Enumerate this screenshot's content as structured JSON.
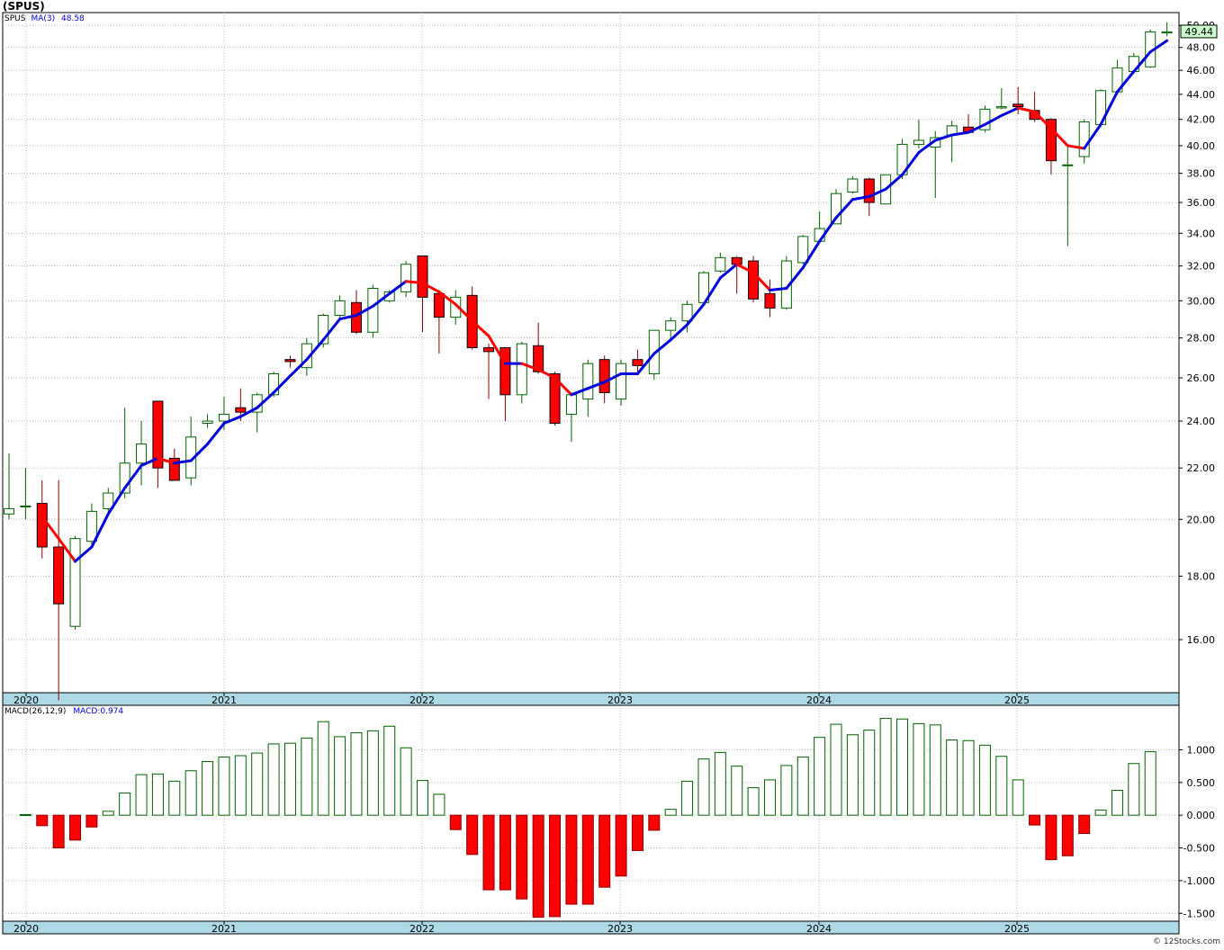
{
  "header": {
    "symbol": "(SPUS)"
  },
  "price_legend": {
    "symbol": "SPUS",
    "ma_label": "MA(3)",
    "ma_value": "48.58"
  },
  "macd_legend": {
    "label": "MACD(26,12,9)",
    "value_label": "MACD:0.974"
  },
  "last_price_tag": "49.44",
  "credit": "© 12Stocks.com",
  "colors": {
    "up": "#006400",
    "down": "#ff0000",
    "ma_up": "#0000dd",
    "ma_down": "#ff0000",
    "axis_band": "#add8e6",
    "grid": "#bbbbbb",
    "tag_bg": "#ccffcc"
  },
  "chart_data": [
    {
      "type": "candlestick",
      "title": "(SPUS)",
      "scale": "log",
      "ylim": [
        14.5,
        51.2
      ],
      "yticks": [
        "16.00",
        "18.00",
        "20.00",
        "22.00",
        "24.00",
        "26.00",
        "28.00",
        "30.00",
        "32.00",
        "34.00",
        "36.00",
        "38.00",
        "40.00",
        "42.00",
        "44.00",
        "46.00",
        "48.00",
        "50.00"
      ],
      "x_labels": [
        "2020",
        "2021",
        "2022",
        "2023",
        "2024",
        "2025"
      ],
      "ma_name": "MA(3)",
      "ohlc": [
        [
          20.2,
          22.6,
          20.0,
          20.4
        ],
        [
          20.5,
          22.0,
          20.0,
          20.5
        ],
        [
          20.6,
          21.5,
          18.6,
          19.0
        ],
        [
          19.0,
          21.5,
          14.3,
          17.1
        ],
        [
          16.4,
          19.4,
          16.3,
          19.3
        ],
        [
          19.2,
          20.6,
          19.1,
          20.3
        ],
        [
          20.4,
          21.2,
          20.2,
          21.0
        ],
        [
          21.0,
          24.6,
          20.8,
          22.2
        ],
        [
          22.2,
          24.0,
          21.3,
          23.0
        ],
        [
          24.9,
          24.9,
          21.2,
          22.0
        ],
        [
          22.4,
          22.8,
          21.6,
          21.5
        ],
        [
          21.6,
          24.2,
          21.3,
          23.3
        ],
        [
          23.9,
          24.3,
          23.7,
          24.0
        ],
        [
          24.0,
          25.1,
          23.6,
          24.3
        ],
        [
          24.6,
          25.5,
          24.0,
          24.4
        ],
        [
          24.4,
          25.3,
          23.5,
          25.2
        ],
        [
          25.2,
          26.3,
          25.1,
          26.2
        ],
        [
          26.9,
          27.1,
          26.5,
          26.8
        ],
        [
          26.5,
          28.0,
          26.1,
          27.7
        ],
        [
          27.7,
          29.3,
          27.5,
          29.2
        ],
        [
          29.2,
          30.3,
          29.0,
          30.0
        ],
        [
          29.9,
          30.6,
          28.2,
          28.3
        ],
        [
          28.3,
          30.9,
          28.0,
          30.7
        ],
        [
          30.0,
          30.6,
          29.9,
          30.5
        ],
        [
          30.5,
          32.3,
          30.2,
          32.1
        ],
        [
          32.6,
          32.6,
          28.3,
          30.2
        ],
        [
          30.4,
          30.6,
          27.2,
          29.1
        ],
        [
          29.1,
          30.6,
          28.7,
          30.2
        ],
        [
          30.3,
          30.8,
          27.4,
          27.5
        ],
        [
          27.5,
          27.7,
          25.0,
          27.3
        ],
        [
          27.5,
          27.5,
          24.0,
          25.2
        ],
        [
          25.2,
          27.8,
          24.8,
          27.7
        ],
        [
          27.6,
          28.8,
          26.2,
          26.3
        ],
        [
          26.2,
          26.3,
          23.8,
          23.9
        ],
        [
          24.3,
          25.3,
          23.1,
          25.2
        ],
        [
          25.0,
          26.9,
          24.2,
          26.7
        ],
        [
          26.9,
          27.1,
          24.8,
          25.3
        ],
        [
          25.0,
          26.9,
          24.7,
          26.7
        ],
        [
          26.9,
          27.4,
          26.3,
          26.6
        ],
        [
          26.2,
          28.3,
          25.9,
          28.4
        ],
        [
          28.4,
          29.1,
          28.0,
          28.9
        ],
        [
          28.9,
          30.0,
          28.3,
          29.8
        ],
        [
          29.9,
          31.7,
          29.8,
          31.6
        ],
        [
          31.7,
          32.8,
          31.6,
          32.5
        ],
        [
          32.5,
          32.6,
          30.4,
          32.1
        ],
        [
          32.3,
          32.6,
          29.9,
          30.1
        ],
        [
          30.4,
          31.2,
          29.1,
          29.6
        ],
        [
          29.6,
          32.6,
          29.5,
          32.3
        ],
        [
          32.2,
          33.9,
          32.1,
          33.8
        ],
        [
          33.5,
          35.4,
          33.4,
          34.3
        ],
        [
          34.6,
          36.9,
          34.6,
          36.6
        ],
        [
          36.7,
          37.8,
          36.6,
          37.6
        ],
        [
          37.6,
          37.7,
          35.1,
          36.0
        ],
        [
          35.9,
          37.9,
          35.9,
          37.9
        ],
        [
          37.9,
          40.5,
          37.6,
          40.1
        ],
        [
          40.1,
          42.0,
          39.8,
          40.4
        ],
        [
          39.9,
          41.1,
          36.3,
          40.6
        ],
        [
          40.8,
          41.9,
          38.8,
          41.5
        ],
        [
          41.4,
          42.4,
          41.0,
          41.0
        ],
        [
          41.2,
          43.1,
          41.0,
          42.8
        ],
        [
          42.9,
          44.5,
          42.8,
          43.0
        ],
        [
          43.2,
          44.6,
          42.4,
          43.0
        ],
        [
          42.7,
          44.2,
          41.8,
          42.0
        ],
        [
          42.0,
          42.1,
          37.9,
          38.9
        ],
        [
          38.6,
          40.0,
          33.2,
          38.6
        ],
        [
          39.2,
          42.0,
          38.7,
          41.8
        ],
        [
          41.6,
          44.4,
          41.4,
          44.3
        ],
        [
          44.2,
          46.9,
          44.0,
          46.2
        ],
        [
          45.9,
          47.5,
          45.7,
          47.2
        ],
        [
          46.3,
          49.6,
          46.2,
          49.4
        ],
        [
          49.3,
          50.3,
          49.0,
          49.4
        ]
      ],
      "ma": [
        null,
        null,
        20.1,
        19.3,
        18.5,
        19.0,
        20.2,
        21.2,
        22.1,
        22.4,
        22.2,
        22.3,
        23.0,
        23.9,
        24.2,
        24.6,
        25.3,
        26.1,
        26.9,
        27.9,
        29.0,
        29.2,
        29.7,
        30.4,
        31.1,
        31.0,
        30.5,
        29.8,
        28.9,
        28.1,
        26.7,
        26.7,
        26.4,
        26.0,
        25.2,
        25.5,
        25.8,
        26.2,
        26.2,
        27.2,
        27.9,
        28.7,
        29.8,
        31.3,
        32.1,
        31.6,
        30.6,
        30.7,
        31.9,
        33.5,
        35.0,
        36.2,
        36.4,
        36.9,
        37.9,
        39.5,
        40.4,
        40.8,
        41.0,
        41.6,
        42.3,
        42.9,
        42.6,
        41.3,
        40.0,
        39.8,
        41.6,
        44.2,
        45.9,
        47.6,
        48.6
      ]
    },
    {
      "type": "bar",
      "title": "MACD(26,12,9)",
      "ylim": [
        -1.62,
        1.68
      ],
      "yticks": [
        "-1.500",
        "-1.000",
        "-0.500",
        "0.000",
        "0.500",
        "1.000"
      ],
      "x_labels": [
        "2020",
        "2021",
        "2022",
        "2023",
        "2024",
        "2025"
      ],
      "values": [
        0.01,
        -0.16,
        -0.5,
        -0.38,
        -0.18,
        0.06,
        0.34,
        0.62,
        0.63,
        0.52,
        0.68,
        0.82,
        0.89,
        0.91,
        0.95,
        1.09,
        1.1,
        1.18,
        1.43,
        1.2,
        1.26,
        1.29,
        1.36,
        1.03,
        0.53,
        0.32,
        -0.22,
        -0.6,
        -1.14,
        -1.14,
        -1.28,
        -1.56,
        -1.55,
        -1.36,
        -1.36,
        -1.1,
        -0.93,
        -0.54,
        -0.23,
        0.09,
        0.52,
        0.86,
        0.96,
        0.75,
        0.42,
        0.54,
        0.76,
        0.89,
        1.19,
        1.39,
        1.23,
        1.3,
        1.48,
        1.47,
        1.4,
        1.38,
        1.15,
        1.14,
        1.07,
        0.9,
        0.54,
        -0.15,
        -0.68,
        -0.62,
        -0.28,
        0.08,
        0.38,
        0.79,
        0.97
      ]
    }
  ]
}
